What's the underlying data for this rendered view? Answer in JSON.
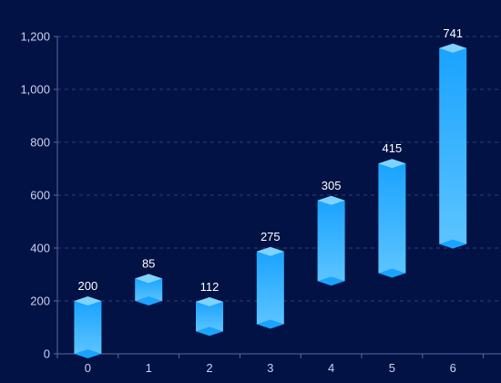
{
  "chart_data": {
    "type": "bar",
    "subtype": "floating-range",
    "categories": [
      "0",
      "1",
      "2",
      "3",
      "4",
      "5",
      "6"
    ],
    "series": [
      {
        "role": "base",
        "values": [
          0,
          200,
          85,
          112,
          275,
          305,
          415
        ]
      },
      {
        "role": "range",
        "values": [
          200,
          85,
          112,
          275,
          305,
          415,
          741
        ]
      }
    ],
    "data_labels": [
      "200",
      "85",
      "112",
      "275",
      "305",
      "415",
      "741"
    ],
    "ylim": [
      0,
      1200
    ],
    "yticks": [
      0,
      200,
      400,
      600,
      800,
      1000,
      1200
    ],
    "ytick_labels": [
      "0",
      "200",
      "400",
      "600",
      "800",
      "1,000",
      "1,200"
    ],
    "grid": true,
    "colors": {
      "background": "#021245",
      "bar_top": "#1aa3ff",
      "bar_bottom": "#5cc4ff",
      "cap": "#7fd3ff",
      "grid": "#2a3f7a",
      "axis": "#5a6a9a",
      "tick_text": "#c9d3ee",
      "value_text": "#ffffff"
    }
  }
}
